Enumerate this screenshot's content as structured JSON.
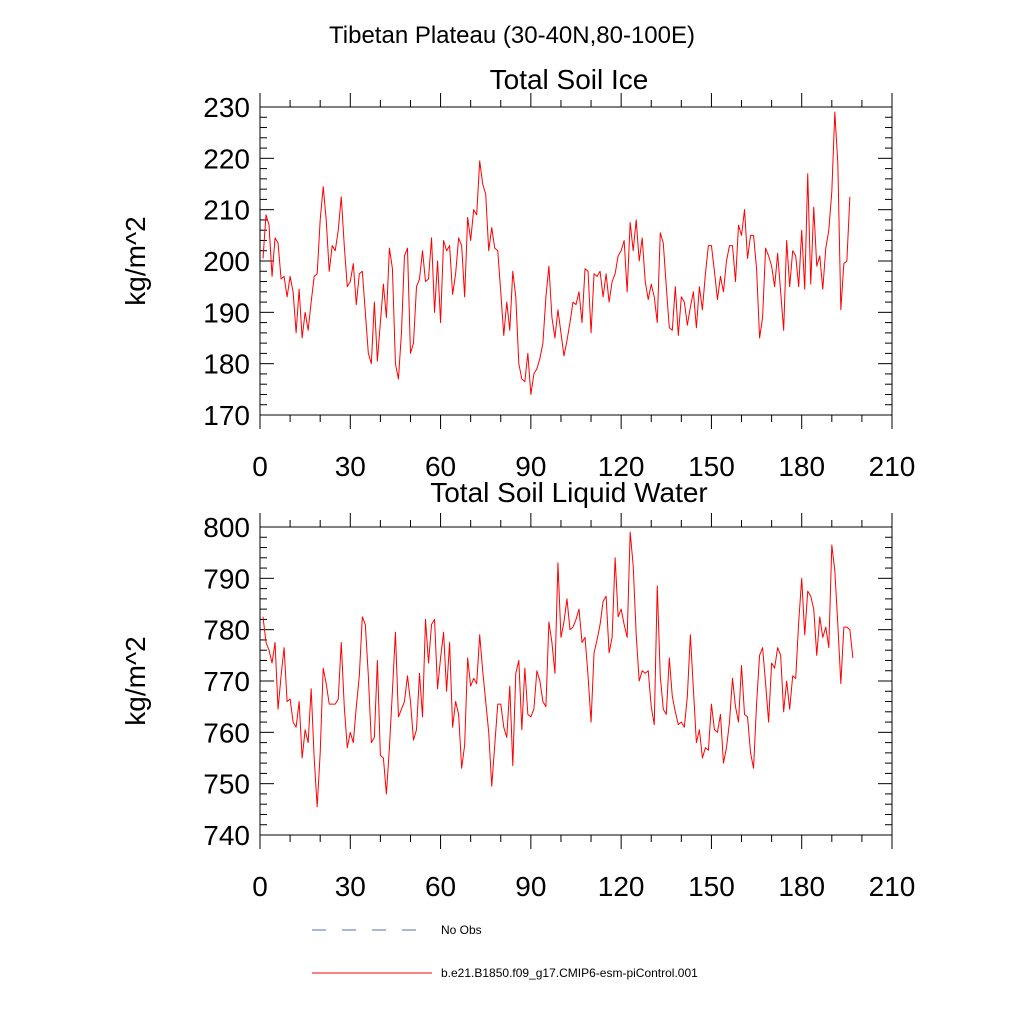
{
  "figure": {
    "suptitle": "Tibetan Plateau (30-40N,80-100E)",
    "line_color": "#ff0000",
    "obs_color": "#5a6fa8"
  },
  "legend": {
    "obs_label": "No Obs",
    "model_label": "b.e21.B1850.f09_g17.CMIP6-esm-piControl.001"
  },
  "chart_data": [
    {
      "type": "line",
      "title": "Total Soil Ice",
      "ylabel": "kg/m^2",
      "xlim": [
        0,
        210
      ],
      "ylim": [
        170,
        230
      ],
      "xticks": [
        0,
        30,
        60,
        90,
        120,
        150,
        180,
        210
      ],
      "yticks": [
        170,
        180,
        190,
        200,
        210,
        220,
        230
      ],
      "x_start": 1,
      "series": [
        {
          "values": [
            200.5,
            209,
            207,
            197,
            204.5,
            203.5,
            196.5,
            197,
            193,
            197,
            194,
            186,
            194.5,
            185,
            190,
            186.5,
            192,
            197,
            197.5,
            208,
            214.5,
            208,
            198,
            203,
            202,
            206,
            212.5,
            203,
            195,
            196,
            199.5,
            191.5,
            197.5,
            198,
            190,
            182,
            180,
            192,
            180.5,
            188,
            195.5,
            189,
            202.5,
            198.5,
            180,
            177,
            186,
            201,
            202.5,
            182,
            184,
            195,
            196.5,
            202,
            196,
            196.5,
            204.5,
            190,
            200,
            188,
            204,
            202,
            203,
            193.5,
            197.5,
            204.5,
            203,
            193,
            208.5,
            204,
            210,
            209,
            219.5,
            215,
            213,
            202,
            206.5,
            202.5,
            202,
            194,
            185.5,
            192,
            186.5,
            198,
            193,
            180,
            177,
            176.5,
            182,
            174,
            178,
            179,
            181,
            184,
            193,
            199,
            189,
            185,
            190.5,
            186,
            181.5,
            184.5,
            188,
            192,
            191.5,
            194,
            188,
            198.5,
            198,
            186,
            197.5,
            197,
            198,
            193,
            197.5,
            192,
            196,
            197.5,
            201,
            202,
            204,
            194,
            207.5,
            202,
            208,
            200,
            204.5,
            196,
            192.5,
            195.5,
            193,
            188,
            205.5,
            203.5,
            195,
            187,
            186.5,
            195,
            185.5,
            193,
            192,
            187.5,
            191,
            194,
            187,
            195,
            190.5,
            197.5,
            203,
            203,
            198,
            192.5,
            197,
            194,
            200,
            203,
            203,
            196,
            207,
            205,
            210,
            200.5,
            205,
            205,
            198.5,
            185,
            189,
            202.5,
            201,
            199,
            195,
            201.5,
            194,
            186.5,
            204,
            195,
            202,
            201,
            195,
            206,
            194.5,
            217,
            195.5,
            210.5,
            199,
            201,
            194.5,
            202.5,
            206,
            213.5,
            229,
            219,
            190.5,
            199.5,
            200,
            212.5
          ]
        }
      ]
    },
    {
      "type": "line",
      "title": "Total Soil Liquid Water",
      "ylabel": "kg/m^2",
      "xlim": [
        0,
        210
      ],
      "ylim": [
        740,
        800
      ],
      "xticks": [
        0,
        30,
        60,
        90,
        120,
        150,
        180,
        210
      ],
      "yticks": [
        740,
        750,
        760,
        770,
        780,
        790,
        800
      ],
      "x_start": 1,
      "series": [
        {
          "values": [
            782.5,
            777.5,
            776,
            773.5,
            777.5,
            764.5,
            771,
            776.5,
            766,
            766.5,
            762,
            761,
            766,
            755,
            760.5,
            758,
            768.5,
            755,
            745.5,
            756,
            772.5,
            769.5,
            765.5,
            765.5,
            765.5,
            766.5,
            777.5,
            765,
            757,
            760,
            758,
            765,
            771,
            782.5,
            781,
            771,
            758,
            759,
            774,
            755.5,
            755,
            748,
            757,
            768,
            779.5,
            763,
            764.5,
            766,
            771,
            766,
            758.5,
            760.5,
            771.5,
            763,
            782,
            773.5,
            781,
            782,
            768.5,
            774.5,
            779.5,
            768,
            777.5,
            761,
            766,
            763.5,
            753,
            757.5,
            774.5,
            769,
            770.5,
            769.5,
            779,
            772,
            766,
            760,
            749.5,
            757.5,
            765.5,
            765.5,
            761,
            759,
            769,
            753.5,
            771.5,
            774,
            760.5,
            772.5,
            763.5,
            763,
            764.5,
            772,
            770,
            766,
            765,
            781.5,
            777.5,
            771.5,
            793,
            778.5,
            781.5,
            786,
            780,
            780.5,
            782,
            784,
            777.5,
            778.5,
            771,
            762,
            775.5,
            778,
            781,
            785.5,
            786.5,
            775.5,
            778.5,
            794,
            782.5,
            784,
            781,
            778.5,
            799,
            792.5,
            779,
            770,
            772,
            771.5,
            772,
            765,
            761.5,
            788.5,
            771,
            764.5,
            763.5,
            774.5,
            767,
            764,
            761.5,
            762,
            761,
            767,
            779,
            768.5,
            758,
            760.5,
            755,
            757,
            756.5,
            765.5,
            760.5,
            760,
            763.5,
            754,
            757,
            762,
            770.5,
            765,
            762,
            773,
            763.5,
            763,
            756,
            753,
            765.5,
            775,
            776.5,
            769.5,
            762,
            773.5,
            772.5,
            776.5,
            775,
            764,
            770,
            764.5,
            771,
            770.5,
            781.5,
            790,
            779,
            787.5,
            786.5,
            784,
            775,
            782.5,
            778.5,
            780.5,
            776.5,
            796.5,
            791.5,
            781,
            769.5,
            780.5,
            780.5,
            780,
            774.5
          ]
        }
      ]
    }
  ]
}
